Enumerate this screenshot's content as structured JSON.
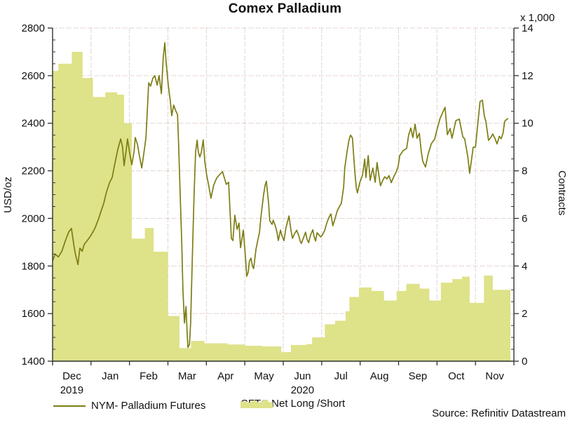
{
  "title": "Comex Palladium",
  "source": "Source: Refinitiv Datastream",
  "colors": {
    "line": "#7d7d15",
    "area": "#dee289",
    "axis": "#303030",
    "text": "#111111",
    "grid_dot_pink": "#e2a49e",
    "grid_dot_teal": "#8fc3ac"
  },
  "left_axis": {
    "title": "USD/oz",
    "min": 1400,
    "max": 2800,
    "major_step": 200,
    "minor_step": 50,
    "labels": [
      "2800",
      "2600",
      "2400",
      "2200",
      "2000",
      "1800",
      "1600",
      "1400"
    ]
  },
  "right_axis": {
    "title": "Contracts",
    "multiplier_label": "x 1,000",
    "min": 0,
    "max": 14,
    "major_step": 2,
    "minor_step": 0.5,
    "labels": [
      "14",
      "12",
      "10",
      "8",
      "6",
      "4",
      "2",
      "0"
    ]
  },
  "x_axis": {
    "months": [
      "Dec",
      "Jan",
      "Feb",
      "Mar",
      "Apr",
      "May",
      "Jun",
      "Jul",
      "Aug",
      "Sep",
      "Oct",
      "Nov"
    ],
    "years": [
      {
        "label": "2019",
        "month_index": 0
      },
      {
        "label": "2020",
        "month_index": 6
      }
    ]
  },
  "legend": [
    {
      "label": "NYM- Palladium Futures",
      "type": "line",
      "color": "#7d7d15"
    },
    {
      "label": "CFTC Net Long /Short",
      "type": "area",
      "color": "#dee289"
    }
  ],
  "chart_data": {
    "type": "combo",
    "x_unit": "months (0 = Dec 2019 ... 11 = Nov 2020, fractional = position within month)",
    "x_range": [
      0,
      12
    ],
    "grid": "dotted, at every 200 USD/oz (left) = 2 thousand contracts (right), vertical at month boundaries",
    "legend_position": "bottom",
    "series": [
      {
        "name": "NYM- Palladium Futures",
        "type": "line",
        "axis": "left",
        "unit": "USD/oz",
        "color": "#7d7d15",
        "points": [
          [
            0.0,
            1822
          ],
          [
            0.07,
            1850
          ],
          [
            0.15,
            1838
          ],
          [
            0.24,
            1862
          ],
          [
            0.33,
            1905
          ],
          [
            0.42,
            1943
          ],
          [
            0.49,
            1958
          ],
          [
            0.55,
            1890
          ],
          [
            0.6,
            1845
          ],
          [
            0.66,
            1806
          ],
          [
            0.71,
            1875
          ],
          [
            0.77,
            1862
          ],
          [
            0.82,
            1890
          ],
          [
            0.89,
            1905
          ],
          [
            0.97,
            1922
          ],
          [
            1.04,
            1940
          ],
          [
            1.11,
            1962
          ],
          [
            1.19,
            1996
          ],
          [
            1.26,
            2030
          ],
          [
            1.33,
            2063
          ],
          [
            1.4,
            2110
          ],
          [
            1.48,
            2150
          ],
          [
            1.55,
            2172
          ],
          [
            1.62,
            2230
          ],
          [
            1.7,
            2292
          ],
          [
            1.77,
            2334
          ],
          [
            1.82,
            2300
          ],
          [
            1.86,
            2222
          ],
          [
            1.91,
            2280
          ],
          [
            1.95,
            2334
          ],
          [
            2.01,
            2270
          ],
          [
            2.06,
            2226
          ],
          [
            2.12,
            2280
          ],
          [
            2.15,
            2340
          ],
          [
            2.21,
            2310
          ],
          [
            2.26,
            2262
          ],
          [
            2.32,
            2212
          ],
          [
            2.37,
            2270
          ],
          [
            2.43,
            2340
          ],
          [
            2.5,
            2570
          ],
          [
            2.55,
            2556
          ],
          [
            2.61,
            2590
          ],
          [
            2.66,
            2600
          ],
          [
            2.72,
            2560
          ],
          [
            2.77,
            2600
          ],
          [
            2.83,
            2524
          ],
          [
            2.88,
            2680
          ],
          [
            2.92,
            2738
          ],
          [
            2.95,
            2660
          ],
          [
            3.01,
            2560
          ],
          [
            3.06,
            2496
          ],
          [
            3.1,
            2432
          ],
          [
            3.15,
            2476
          ],
          [
            3.21,
            2450
          ],
          [
            3.25,
            2437
          ],
          [
            3.28,
            2300
          ],
          [
            3.32,
            2100
          ],
          [
            3.36,
            1900
          ],
          [
            3.39,
            1700
          ],
          [
            3.43,
            1560
          ],
          [
            3.47,
            1630
          ],
          [
            3.5,
            1520
          ],
          [
            3.52,
            1458
          ],
          [
            3.56,
            1470
          ],
          [
            3.59,
            1560
          ],
          [
            3.63,
            1800
          ],
          [
            3.68,
            2100
          ],
          [
            3.72,
            2280
          ],
          [
            3.76,
            2329
          ],
          [
            3.79,
            2280
          ],
          [
            3.83,
            2258
          ],
          [
            3.87,
            2278
          ],
          [
            3.92,
            2330
          ],
          [
            3.96,
            2240
          ],
          [
            4.01,
            2180
          ],
          [
            4.07,
            2130
          ],
          [
            4.12,
            2085
          ],
          [
            4.19,
            2140
          ],
          [
            4.27,
            2170
          ],
          [
            4.35,
            2185
          ],
          [
            4.42,
            2196
          ],
          [
            4.52,
            2143
          ],
          [
            4.58,
            2152
          ],
          [
            4.65,
            1916
          ],
          [
            4.69,
            1907
          ],
          [
            4.74,
            2013
          ],
          [
            4.8,
            1954
          ],
          [
            4.85,
            1980
          ],
          [
            4.89,
            1877
          ],
          [
            4.96,
            1951
          ],
          [
            5.02,
            1830
          ],
          [
            5.05,
            1757
          ],
          [
            5.09,
            1775
          ],
          [
            5.12,
            1820
          ],
          [
            5.16,
            1833
          ],
          [
            5.2,
            1800
          ],
          [
            5.23,
            1789
          ],
          [
            5.29,
            1870
          ],
          [
            5.34,
            1910
          ],
          [
            5.38,
            1939
          ],
          [
            5.43,
            2020
          ],
          [
            5.49,
            2100
          ],
          [
            5.53,
            2140
          ],
          [
            5.56,
            2157
          ],
          [
            5.62,
            2060
          ],
          [
            5.65,
            1990
          ],
          [
            5.71,
            1975
          ],
          [
            5.74,
            1992
          ],
          [
            5.8,
            1966
          ],
          [
            5.84,
            1940
          ],
          [
            5.87,
            1907
          ],
          [
            5.93,
            1951
          ],
          [
            5.96,
            1930
          ],
          [
            6.02,
            1907
          ],
          [
            6.07,
            1960
          ],
          [
            6.15,
            2010
          ],
          [
            6.2,
            1950
          ],
          [
            6.24,
            1916
          ],
          [
            6.29,
            1935
          ],
          [
            6.35,
            1950
          ],
          [
            6.4,
            1930
          ],
          [
            6.44,
            1905
          ],
          [
            6.47,
            1895
          ],
          [
            6.53,
            1920
          ],
          [
            6.58,
            1942
          ],
          [
            6.62,
            1912
          ],
          [
            6.66,
            1898
          ],
          [
            6.71,
            1930
          ],
          [
            6.77,
            1952
          ],
          [
            6.8,
            1925
          ],
          [
            6.84,
            1905
          ],
          [
            6.88,
            1940
          ],
          [
            6.93,
            1930
          ],
          [
            6.98,
            1922
          ],
          [
            7.02,
            1931
          ],
          [
            7.08,
            1950
          ],
          [
            7.13,
            1980
          ],
          [
            7.19,
            2005
          ],
          [
            7.24,
            2019
          ],
          [
            7.29,
            1969
          ],
          [
            7.35,
            2000
          ],
          [
            7.4,
            2030
          ],
          [
            7.46,
            2050
          ],
          [
            7.51,
            2063
          ],
          [
            7.57,
            2130
          ],
          [
            7.6,
            2211
          ],
          [
            7.66,
            2280
          ],
          [
            7.71,
            2330
          ],
          [
            7.75,
            2350
          ],
          [
            7.8,
            2337
          ],
          [
            7.86,
            2200
          ],
          [
            7.9,
            2128
          ],
          [
            7.93,
            2107
          ],
          [
            7.99,
            2150
          ],
          [
            8.06,
            2181
          ],
          [
            8.12,
            2249
          ],
          [
            8.15,
            2172
          ],
          [
            8.21,
            2264
          ],
          [
            8.26,
            2160
          ],
          [
            8.3,
            2190
          ],
          [
            8.33,
            2211
          ],
          [
            8.39,
            2152
          ],
          [
            8.44,
            2235
          ],
          [
            8.48,
            2190
          ],
          [
            8.53,
            2137
          ],
          [
            8.59,
            2160
          ],
          [
            8.64,
            2175
          ],
          [
            8.7,
            2166
          ],
          [
            8.75,
            2180
          ],
          [
            8.81,
            2150
          ],
          [
            8.86,
            2170
          ],
          [
            8.94,
            2196
          ],
          [
            8.99,
            2220
          ],
          [
            9.03,
            2264
          ],
          [
            9.08,
            2275
          ],
          [
            9.12,
            2285
          ],
          [
            9.17,
            2290
          ],
          [
            9.21,
            2294
          ],
          [
            9.26,
            2350
          ],
          [
            9.32,
            2380
          ],
          [
            9.37,
            2340
          ],
          [
            9.43,
            2396
          ],
          [
            9.48,
            2337
          ],
          [
            9.54,
            2358
          ],
          [
            9.59,
            2280
          ],
          [
            9.63,
            2240
          ],
          [
            9.7,
            2216
          ],
          [
            9.77,
            2270
          ],
          [
            9.85,
            2313
          ],
          [
            9.94,
            2334
          ],
          [
            10.01,
            2380
          ],
          [
            10.08,
            2420
          ],
          [
            10.16,
            2450
          ],
          [
            10.21,
            2467
          ],
          [
            10.27,
            2352
          ],
          [
            10.34,
            2378
          ],
          [
            10.39,
            2337
          ],
          [
            10.49,
            2411
          ],
          [
            10.58,
            2417
          ],
          [
            10.67,
            2343
          ],
          [
            10.72,
            2334
          ],
          [
            10.8,
            2260
          ],
          [
            10.85,
            2190
          ],
          [
            10.9,
            2250
          ],
          [
            10.94,
            2299
          ],
          [
            11.0,
            2300
          ],
          [
            11.05,
            2380
          ],
          [
            11.12,
            2491
          ],
          [
            11.18,
            2497
          ],
          [
            11.23,
            2430
          ],
          [
            11.27,
            2408
          ],
          [
            11.34,
            2328
          ],
          [
            11.4,
            2340
          ],
          [
            11.45,
            2355
          ],
          [
            11.51,
            2335
          ],
          [
            11.56,
            2313
          ],
          [
            11.62,
            2345
          ],
          [
            11.67,
            2335
          ],
          [
            11.72,
            2360
          ],
          [
            11.76,
            2408
          ],
          [
            11.82,
            2417
          ],
          [
            11.85,
            2420
          ]
        ]
      },
      {
        "name": "CFTC Net Long /Short",
        "type": "step-area",
        "axis": "right",
        "unit": "thousand contracts",
        "color": "#dee289",
        "steps": [
          [
            0.0,
            12.2
          ],
          [
            0.15,
            12.5
          ],
          [
            0.5,
            13.0
          ],
          [
            0.78,
            11.9
          ],
          [
            1.05,
            11.1
          ],
          [
            1.37,
            11.3
          ],
          [
            1.68,
            11.2
          ],
          [
            1.86,
            10.0
          ],
          [
            2.06,
            5.15
          ],
          [
            2.4,
            5.6
          ],
          [
            2.63,
            4.6
          ],
          [
            3.0,
            1.9
          ],
          [
            3.3,
            0.55
          ],
          [
            3.6,
            0.85
          ],
          [
            3.95,
            0.75
          ],
          [
            4.55,
            0.7
          ],
          [
            5.0,
            0.65
          ],
          [
            5.45,
            0.62
          ],
          [
            5.95,
            0.38
          ],
          [
            6.2,
            0.68
          ],
          [
            6.6,
            0.72
          ],
          [
            6.75,
            1.0
          ],
          [
            7.08,
            1.55
          ],
          [
            7.35,
            1.7
          ],
          [
            7.62,
            2.1
          ],
          [
            7.72,
            2.7
          ],
          [
            7.97,
            3.1
          ],
          [
            8.3,
            2.95
          ],
          [
            8.62,
            2.55
          ],
          [
            8.95,
            2.95
          ],
          [
            9.2,
            3.25
          ],
          [
            9.55,
            3.05
          ],
          [
            9.8,
            2.55
          ],
          [
            10.1,
            3.3
          ],
          [
            10.4,
            3.45
          ],
          [
            10.65,
            3.55
          ],
          [
            10.85,
            2.45
          ],
          [
            11.22,
            3.6
          ],
          [
            11.45,
            3.0
          ]
        ],
        "end_x": 11.91
      }
    ]
  }
}
